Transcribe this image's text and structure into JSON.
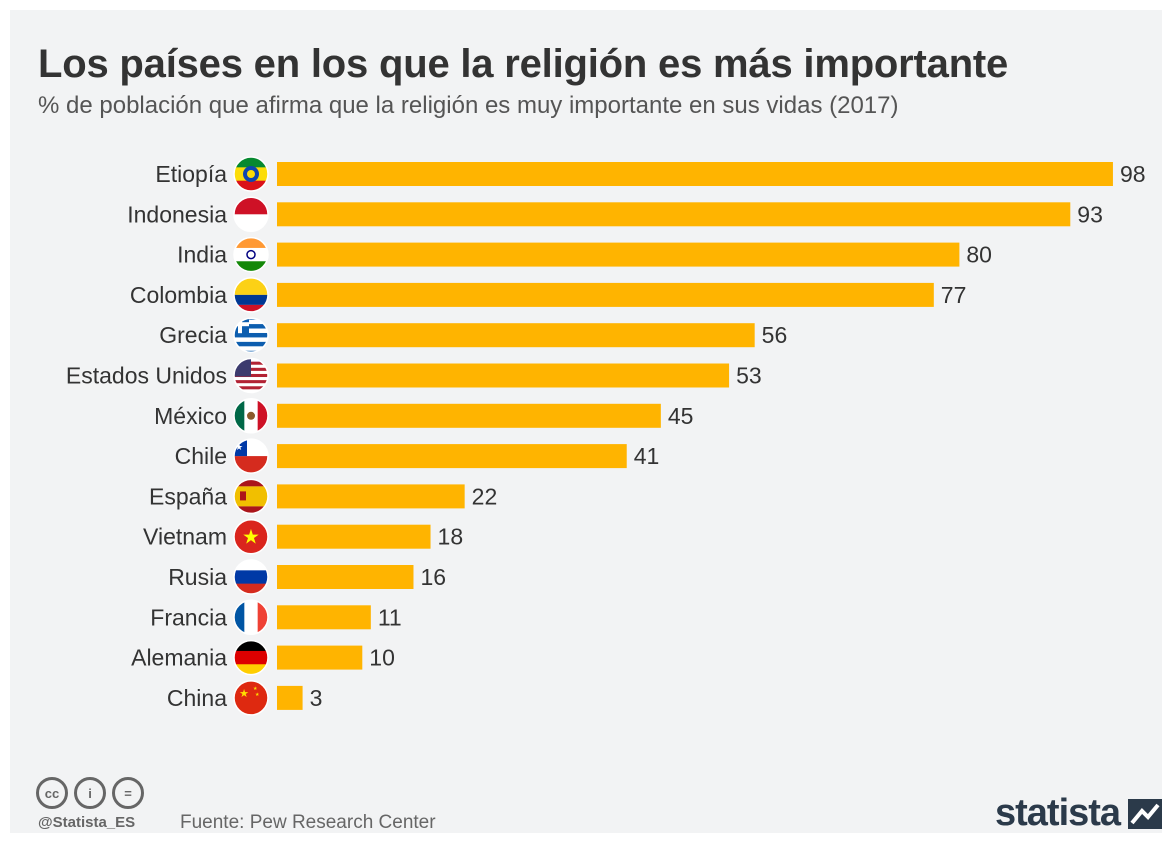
{
  "title": "Los países en los que la religión es más importante",
  "subtitle": "% de población que afirma que la religión es muy importante en sus vidas (2017)",
  "chart_data": {
    "type": "bar",
    "orientation": "horizontal",
    "categories": [
      "Etiopía",
      "Indonesia",
      "India",
      "Colombia",
      "Grecia",
      "Estados Unidos",
      "México",
      "Chile",
      "España",
      "Vietnam",
      "Rusia",
      "Francia",
      "Alemania",
      "China"
    ],
    "values": [
      98,
      93,
      80,
      77,
      56,
      53,
      45,
      41,
      22,
      18,
      16,
      11,
      10,
      3
    ],
    "xlim": [
      0,
      100
    ],
    "grid": false,
    "bar_color": "#ffb400"
  },
  "footer": {
    "license_icons": [
      "cc",
      "i",
      "="
    ],
    "handle": "@Statista_ES",
    "source": "Fuente: Pew Research Center",
    "brand": "statista"
  },
  "colors": {
    "background": "#f2f3f4",
    "text": "#333333",
    "bar": "#ffb400"
  }
}
